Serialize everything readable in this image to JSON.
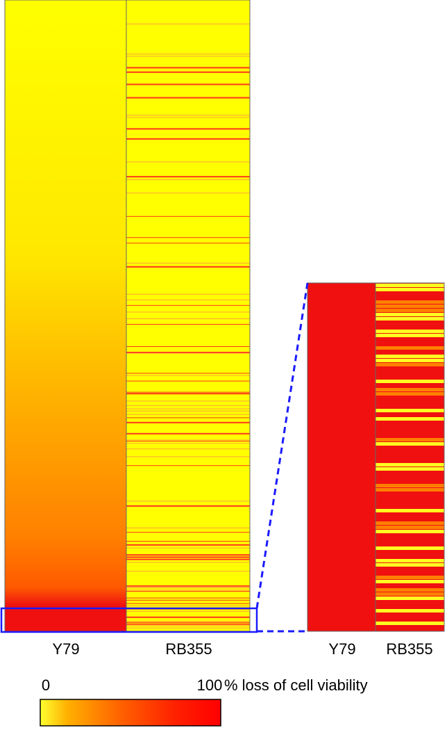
{
  "main_heatmap": {
    "columns": [
      "Y79",
      "RB355"
    ]
  },
  "zoom_heatmap": {
    "columns": [
      "Y79",
      "RB355"
    ]
  },
  "colorbar": {
    "min_label": "0",
    "max_label": "100",
    "title": "% loss of cell viability"
  }
}
